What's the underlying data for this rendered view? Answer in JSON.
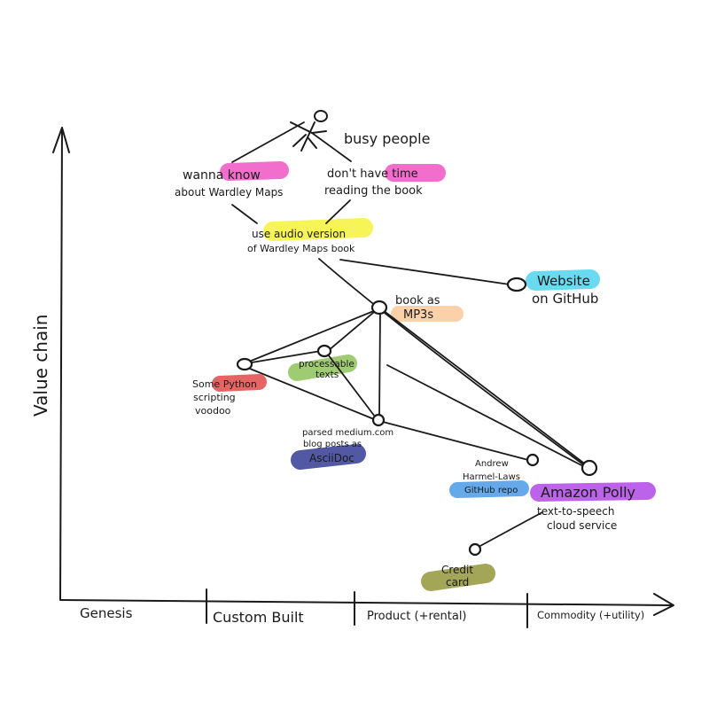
{
  "axes": {
    "y_label": "Value chain",
    "x_stages": [
      "Genesis",
      "Custom Built",
      "Product (+rental)",
      "Commodity (+utility)"
    ]
  },
  "colors": {
    "pink": "#ee55c4",
    "yellow": "#f4f23a",
    "orange": "#f9c99a",
    "cyan": "#4fd3ec",
    "red": "#e04a4a",
    "green": "#8ec25a",
    "navy": "#3f4699",
    "blue": "#4a9ae8",
    "purple": "#b147e6",
    "olive": "#9a9c45"
  },
  "labels": {
    "user": "busy people",
    "need1_a": "wanna know",
    "need1_b": "about Wardley Maps",
    "need2_a": "don't have time",
    "need2_b": "reading the book",
    "audio_a": "use audio version",
    "audio_b": "of Wardley Maps book",
    "website_a": "Website",
    "website_b": "on GitHub",
    "mp3_a": "book as",
    "mp3_b": "MP3s",
    "texts_a": "processable",
    "texts_b": "texts",
    "python_a": "Some Python",
    "python_b": "scripting",
    "python_c": "voodoo",
    "asciidoc_a": "parsed medium.com",
    "asciidoc_b": "blog posts as",
    "asciidoc_c": "AsciiDoc",
    "repo_a": "Andrew",
    "repo_b": "Harmel-Laws",
    "repo_c": "GitHub repo",
    "polly_a": "Amazon Polly",
    "polly_b": "text-to-speech",
    "polly_c": "cloud service",
    "card_a": "Credit",
    "card_b": "card"
  }
}
